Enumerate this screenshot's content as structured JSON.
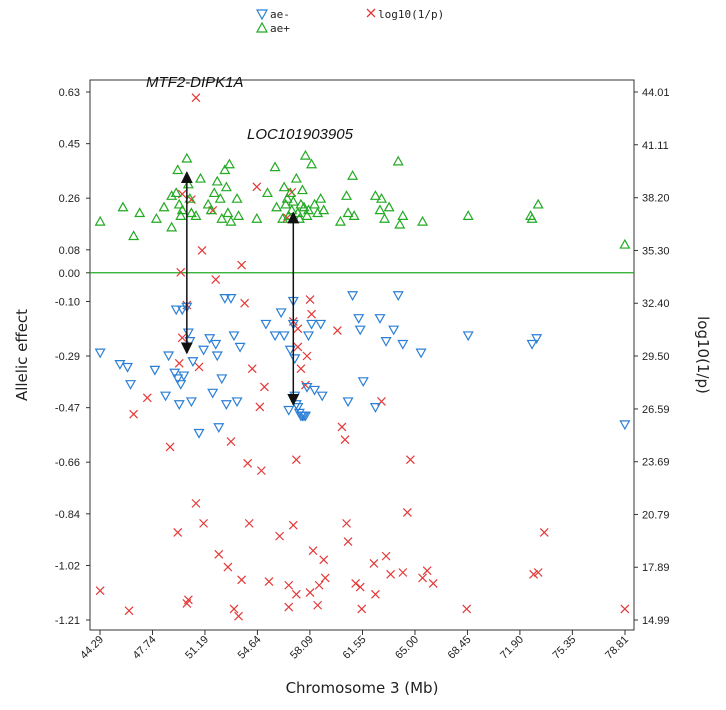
{
  "chart_data": {
    "type": "scatter",
    "title": "",
    "xlabel": "Chromosome 3 (Mb)",
    "ylabel": "Allelic effect",
    "y2label": "log10(1/p)",
    "xlim": [
      44.29,
      78.81
    ],
    "ylim": [
      -1.21,
      0.63
    ],
    "y2lim": [
      14.99,
      44.01
    ],
    "x_ticks": [
      "44.29",
      "47.74",
      "51.19",
      "54.64",
      "58.09",
      "61.55",
      "65.00",
      "68.45",
      "71.90",
      "75.35",
      "78.81"
    ],
    "y_ticks": [
      "0.63",
      "0.45",
      "0.26",
      "0.08",
      "0.00",
      "-0.10",
      "-0.29",
      "-0.47",
      "-0.66",
      "-0.84",
      "-1.02",
      "-1.21"
    ],
    "y2_ticks": [
      "44.01",
      "41.11",
      "38.20",
      "35.30",
      "32.40",
      "29.50",
      "26.59",
      "23.69",
      "20.79",
      "17.89",
      "14.99"
    ],
    "zero_line": 0.0,
    "zero_line_label": "0.00",
    "legend": [
      {
        "label": "ae-",
        "marker": "triangle-down",
        "color": "#2b7fd6"
      },
      {
        "label": "ae+",
        "marker": "triangle-up",
        "color": "#22aa22"
      },
      {
        "label": "log10(1/p)",
        "marker": "x",
        "color": "#e53838"
      }
    ],
    "annotations": [
      {
        "text": "MTF2-DIPK1A",
        "arrow_x": 50.0,
        "arrow_from": 0.35,
        "arrow_to": -0.28
      },
      {
        "text": "LOC101903905",
        "arrow_x": 57.0,
        "arrow_from": 0.21,
        "arrow_to": -0.46
      }
    ],
    "series": [
      {
        "name": "ae+",
        "axis": "left",
        "points": [
          [
            44.3,
            0.18
          ],
          [
            45.8,
            0.23
          ],
          [
            46.5,
            0.13
          ],
          [
            46.9,
            0.21
          ],
          [
            48.0,
            0.19
          ],
          [
            48.5,
            0.23
          ],
          [
            49.0,
            0.16
          ],
          [
            49.0,
            0.27
          ],
          [
            49.3,
            0.28
          ],
          [
            49.4,
            0.36
          ],
          [
            49.5,
            0.24
          ],
          [
            49.6,
            0.2
          ],
          [
            49.7,
            0.22
          ],
          [
            50.0,
            0.4
          ],
          [
            50.1,
            0.31
          ],
          [
            50.2,
            0.26
          ],
          [
            50.3,
            0.21
          ],
          [
            50.6,
            0.2
          ],
          [
            50.9,
            0.33
          ],
          [
            51.4,
            0.24
          ],
          [
            51.6,
            0.22
          ],
          [
            51.8,
            0.28
          ],
          [
            52.0,
            0.32
          ],
          [
            52.2,
            0.26
          ],
          [
            52.3,
            0.19
          ],
          [
            52.5,
            0.36
          ],
          [
            52.6,
            0.3
          ],
          [
            52.7,
            0.21
          ],
          [
            52.8,
            0.38
          ],
          [
            52.9,
            0.18
          ],
          [
            53.3,
            0.26
          ],
          [
            53.4,
            0.2
          ],
          [
            54.6,
            0.19
          ],
          [
            55.3,
            0.28
          ],
          [
            55.8,
            0.37
          ],
          [
            55.9,
            0.23
          ],
          [
            56.3,
            0.19
          ],
          [
            56.4,
            0.3
          ],
          [
            56.5,
            0.24
          ],
          [
            56.6,
            0.26
          ],
          [
            56.7,
            0.2
          ],
          [
            56.8,
            0.28
          ],
          [
            56.9,
            0.22
          ],
          [
            57.0,
            0.25
          ],
          [
            57.2,
            0.33
          ],
          [
            57.3,
            0.21
          ],
          [
            57.4,
            0.19
          ],
          [
            57.5,
            0.24
          ],
          [
            57.6,
            0.29
          ],
          [
            57.7,
            0.23
          ],
          [
            57.8,
            0.41
          ],
          [
            57.9,
            0.2
          ],
          [
            58.0,
            0.22
          ],
          [
            58.2,
            0.38
          ],
          [
            58.4,
            0.24
          ],
          [
            58.6,
            0.21
          ],
          [
            58.8,
            0.26
          ],
          [
            59.0,
            0.22
          ],
          [
            60.1,
            0.18
          ],
          [
            60.5,
            0.27
          ],
          [
            60.6,
            0.21
          ],
          [
            60.9,
            0.34
          ],
          [
            61.0,
            0.2
          ],
          [
            62.4,
            0.27
          ],
          [
            62.7,
            0.22
          ],
          [
            62.8,
            0.26
          ],
          [
            63.0,
            0.19
          ],
          [
            63.3,
            0.23
          ],
          [
            63.9,
            0.39
          ],
          [
            64.0,
            0.17
          ],
          [
            64.2,
            0.2
          ],
          [
            65.5,
            0.18
          ],
          [
            68.5,
            0.2
          ],
          [
            72.6,
            0.2
          ],
          [
            72.7,
            0.19
          ],
          [
            73.1,
            0.24
          ],
          [
            78.8,
            0.1
          ]
        ]
      },
      {
        "name": "ae-",
        "axis": "left",
        "points": [
          [
            44.3,
            -0.28
          ],
          [
            45.6,
            -0.32
          ],
          [
            46.1,
            -0.33
          ],
          [
            46.3,
            -0.39
          ],
          [
            47.9,
            -0.34
          ],
          [
            48.6,
            -0.43
          ],
          [
            48.8,
            -0.29
          ],
          [
            49.2,
            -0.35
          ],
          [
            49.3,
            -0.13
          ],
          [
            49.4,
            -0.37
          ],
          [
            49.5,
            -0.46
          ],
          [
            49.6,
            -0.39
          ],
          [
            49.7,
            -0.13
          ],
          [
            49.8,
            -0.36
          ],
          [
            50.0,
            -0.12
          ],
          [
            50.1,
            -0.21
          ],
          [
            50.2,
            -0.24
          ],
          [
            50.3,
            -0.45
          ],
          [
            50.4,
            -0.31
          ],
          [
            50.8,
            -0.56
          ],
          [
            51.1,
            -0.27
          ],
          [
            51.5,
            -0.23
          ],
          [
            51.7,
            -0.42
          ],
          [
            51.9,
            -0.25
          ],
          [
            52.0,
            -0.29
          ],
          [
            52.1,
            -0.54
          ],
          [
            52.3,
            -0.37
          ],
          [
            52.5,
            -0.09
          ],
          [
            52.6,
            -0.46
          ],
          [
            52.9,
            -0.09
          ],
          [
            53.1,
            -0.22
          ],
          [
            53.3,
            -0.45
          ],
          [
            53.5,
            -0.26
          ],
          [
            55.2,
            -0.18
          ],
          [
            55.8,
            -0.22
          ],
          [
            56.2,
            -0.14
          ],
          [
            56.4,
            -0.22
          ],
          [
            56.7,
            -0.48
          ],
          [
            56.8,
            -0.27
          ],
          [
            57.0,
            -0.1
          ],
          [
            57.0,
            -0.18
          ],
          [
            57.1,
            -0.3
          ],
          [
            57.1,
            -0.43
          ],
          [
            57.2,
            -0.46
          ],
          [
            57.3,
            -0.47
          ],
          [
            57.4,
            -0.49
          ],
          [
            57.5,
            -0.5
          ],
          [
            57.6,
            -0.5
          ],
          [
            57.7,
            -0.5
          ],
          [
            57.8,
            -0.5
          ],
          [
            57.9,
            -0.4
          ],
          [
            58.0,
            -0.22
          ],
          [
            58.2,
            -0.18
          ],
          [
            58.4,
            -0.41
          ],
          [
            58.8,
            -0.18
          ],
          [
            58.9,
            -0.43
          ],
          [
            60.6,
            -0.45
          ],
          [
            60.9,
            -0.08
          ],
          [
            61.3,
            -0.16
          ],
          [
            61.4,
            -0.2
          ],
          [
            61.6,
            -0.38
          ],
          [
            62.4,
            -0.47
          ],
          [
            62.7,
            -0.16
          ],
          [
            63.1,
            -0.24
          ],
          [
            63.6,
            -0.2
          ],
          [
            63.9,
            -0.08
          ],
          [
            64.2,
            -0.25
          ],
          [
            65.4,
            -0.28
          ],
          [
            68.5,
            -0.22
          ],
          [
            72.7,
            -0.25
          ],
          [
            73.0,
            -0.23
          ],
          [
            78.8,
            -0.53
          ]
        ]
      },
      {
        "name": "log10(1/p)",
        "axis": "right",
        "points": [
          [
            44.3,
            16.6
          ],
          [
            46.2,
            15.5
          ],
          [
            46.5,
            26.3
          ],
          [
            47.4,
            27.2
          ],
          [
            48.9,
            24.5
          ],
          [
            49.4,
            19.8
          ],
          [
            49.5,
            29.1
          ],
          [
            49.6,
            34.1
          ],
          [
            49.7,
            30.5
          ],
          [
            49.7,
            38.4
          ],
          [
            50.0,
            15.9
          ],
          [
            50.0,
            32.3
          ],
          [
            50.1,
            16.1
          ],
          [
            50.3,
            38.1
          ],
          [
            50.6,
            43.7
          ],
          [
            50.6,
            21.4
          ],
          [
            50.8,
            28.9
          ],
          [
            51.0,
            35.3
          ],
          [
            51.1,
            20.3
          ],
          [
            51.7,
            37.5
          ],
          [
            51.9,
            33.7
          ],
          [
            52.1,
            18.6
          ],
          [
            52.7,
            17.9
          ],
          [
            52.9,
            24.8
          ],
          [
            53.1,
            15.6
          ],
          [
            53.4,
            15.2
          ],
          [
            53.6,
            34.5
          ],
          [
            53.6,
            17.2
          ],
          [
            53.8,
            32.4
          ],
          [
            54.0,
            23.6
          ],
          [
            54.1,
            20.3
          ],
          [
            54.3,
            28.8
          ],
          [
            54.6,
            38.8
          ],
          [
            54.8,
            26.7
          ],
          [
            54.9,
            23.2
          ],
          [
            55.1,
            27.8
          ],
          [
            55.4,
            17.1
          ],
          [
            56.1,
            19.6
          ],
          [
            56.6,
            37.1
          ],
          [
            56.7,
            16.9
          ],
          [
            56.7,
            15.7
          ],
          [
            56.9,
            38.5
          ],
          [
            57.0,
            20.2
          ],
          [
            57.0,
            31.4
          ],
          [
            57.2,
            23.8
          ],
          [
            57.2,
            16.4
          ],
          [
            57.3,
            31.0
          ],
          [
            57.3,
            30.0
          ],
          [
            57.5,
            28.8
          ],
          [
            57.8,
            27.9
          ],
          [
            57.9,
            29.5
          ],
          [
            58.1,
            16.5
          ],
          [
            58.1,
            32.6
          ],
          [
            58.2,
            31.8
          ],
          [
            58.3,
            18.8
          ],
          [
            58.6,
            15.8
          ],
          [
            58.7,
            16.9
          ],
          [
            59.0,
            18.3
          ],
          [
            59.1,
            17.3
          ],
          [
            59.9,
            30.9
          ],
          [
            60.2,
            25.6
          ],
          [
            60.4,
            24.9
          ],
          [
            60.5,
            20.3
          ],
          [
            60.6,
            19.3
          ],
          [
            61.1,
            17.0
          ],
          [
            61.4,
            16.8
          ],
          [
            61.5,
            15.6
          ],
          [
            62.3,
            18.1
          ],
          [
            62.4,
            16.4
          ],
          [
            62.8,
            27.0
          ],
          [
            63.1,
            18.5
          ],
          [
            63.4,
            17.5
          ],
          [
            64.2,
            17.6
          ],
          [
            64.5,
            20.9
          ],
          [
            64.7,
            23.8
          ],
          [
            65.5,
            17.3
          ],
          [
            65.8,
            17.7
          ],
          [
            66.2,
            17.0
          ],
          [
            68.4,
            15.6
          ],
          [
            72.8,
            17.5
          ],
          [
            73.1,
            17.6
          ],
          [
            73.5,
            19.8
          ],
          [
            78.8,
            15.6
          ]
        ]
      }
    ]
  }
}
